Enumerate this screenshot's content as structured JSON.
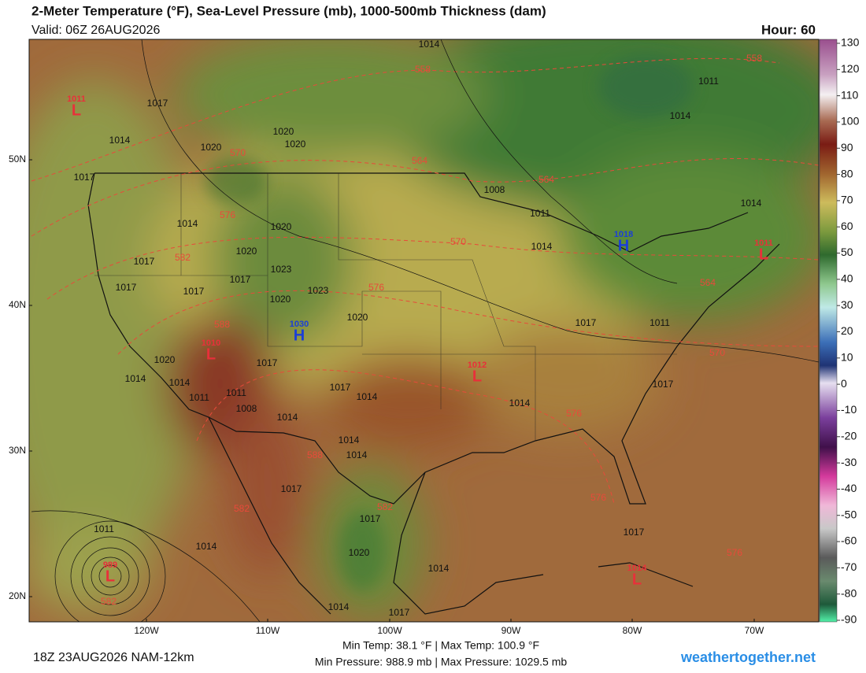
{
  "header": {
    "title": "2-Meter Temperature (°F), Sea-Level Pressure (mb), 1000-500mb Thickness (dam)",
    "valid": "Valid: 06Z 26AUG2026",
    "hour": "Hour: 60"
  },
  "colorbar": {
    "ticks": [
      130,
      120,
      110,
      100,
      90,
      80,
      70,
      60,
      50,
      40,
      30,
      20,
      10,
      0,
      -10,
      -20,
      -30,
      -40,
      -50,
      -60,
      -70,
      -80,
      -90
    ]
  },
  "map": {
    "lat_labels": [
      "50N",
      "40N",
      "30N",
      "20N"
    ],
    "lon_labels": [
      "120W",
      "110W",
      "100W",
      "90W",
      "80W",
      "70W"
    ],
    "highs": [
      {
        "symbol": "H",
        "value": 1030
      },
      {
        "symbol": "H",
        "value": 1018
      }
    ],
    "lows": [
      {
        "symbol": "L",
        "value": 1011
      },
      {
        "symbol": "L",
        "value": 1010
      },
      {
        "symbol": "L",
        "value": 1012
      },
      {
        "symbol": "L",
        "value": 1014
      },
      {
        "symbol": "L",
        "value": 989
      },
      {
        "symbol": "L",
        "value": 1011
      }
    ],
    "isobar_labels": [
      1014,
      1017,
      1011,
      1014,
      1014,
      1020,
      1020,
      1020,
      1017,
      1008,
      1011,
      1014,
      1020,
      1020,
      1014,
      1017,
      1023,
      1017,
      1017,
      1017,
      1023,
      1020,
      1020,
      1017,
      1014,
      1011,
      1020,
      1014,
      1014,
      1017,
      1017,
      1014,
      1011,
      1011,
      1008,
      1014,
      1014,
      1017,
      1014,
      1014,
      1017,
      1017,
      1011,
      1014,
      1020,
      1014,
      1017,
      1014,
      1017
    ],
    "thickness_labels": [
      558,
      558,
      570,
      564,
      564,
      576,
      582,
      570,
      576,
      564,
      588,
      570,
      576,
      588,
      582,
      582,
      576,
      576,
      582
    ]
  },
  "footer": {
    "run": "18Z 23AUG2026 NAM-12km",
    "temp_stats": "Min Temp:  38.1 °F | Max Temp: 100.9 °F",
    "pressure_stats": "Min Pressure: 988.9 mb | Max Pressure: 1029.5 mb",
    "site": "weathertogether.net"
  }
}
